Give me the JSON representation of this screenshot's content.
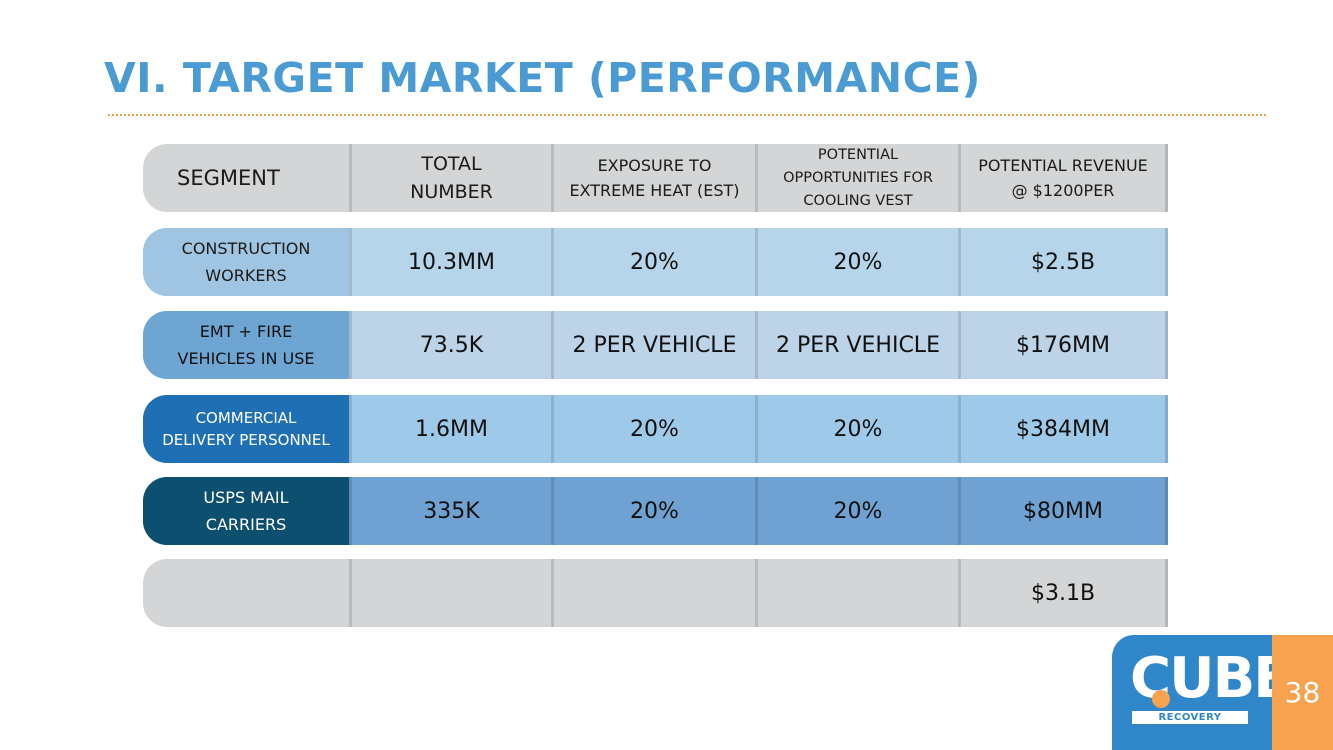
{
  "slide": {
    "title": "VI. TARGET MARKET (PERFORMANCE)",
    "page_number": "38"
  },
  "table": {
    "headers": {
      "segment": "SEGMENT",
      "total_number": "TOTAL\nNUMBER",
      "exposure": "EXPOSURE TO\nEXTREME HEAT (EST)",
      "opportunities": "POTENTIAL\nOPPORTUNITIES FOR\nCOOLING VEST",
      "revenue": "POTENTIAL REVENUE\n@ $1200PER"
    },
    "rows": [
      {
        "segment": "CONSTRUCTION\nWORKERS",
        "total": "10.3MM",
        "exposure": "20%",
        "opportunities": "20%",
        "revenue": "$2.5B"
      },
      {
        "segment": "EMT + FIRE\nVEHICLES IN USE",
        "total": "73.5K",
        "exposure": "2 PER VEHICLE",
        "opportunities": "2 PER VEHICLE",
        "revenue": "$176MM"
      },
      {
        "segment": "COMMERCIAL\nDELIVERY PERSONNEL",
        "total": "1.6MM",
        "exposure": "20%",
        "opportunities": "20%",
        "revenue": "$384MM"
      },
      {
        "segment": "USPS MAIL\nCARRIERS",
        "total": "335K",
        "exposure": "20%",
        "opportunities": "20%",
        "revenue": "$80MM"
      }
    ],
    "total_row": {
      "segment": "",
      "total": "",
      "exposure": "",
      "opportunities": "",
      "revenue": "$3.1B"
    }
  },
  "logo": {
    "brand": "CUBE",
    "tagline": "RECOVERY"
  },
  "colors": {
    "title_blue": "#4a9bd4",
    "accent_orange": "#f7a24f",
    "header_gray": "#d3d5d7",
    "logo_blue": "#2f86c8"
  }
}
